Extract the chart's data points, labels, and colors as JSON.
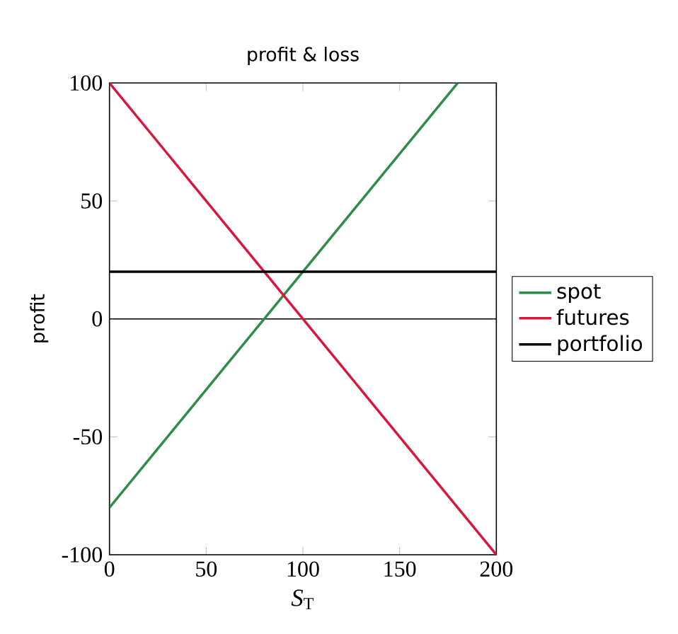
{
  "chart_data": {
    "type": "line",
    "title": "profit & loss",
    "xlabel": "*S*$_{T}$",
    "ylabel": "profit",
    "xlim": [
      0,
      200
    ],
    "ylim": [
      -100,
      100
    ],
    "xticks": [
      0,
      50,
      100,
      150,
      200
    ],
    "yticks": [
      -100,
      -50,
      0,
      50,
      100
    ],
    "series": [
      {
        "name": "spot",
        "color": "#2e8b4a",
        "x": [
          0,
          180
        ],
        "values": [
          -80,
          100
        ]
      },
      {
        "name": "futures",
        "color": "#dc143c",
        "x": [
          0,
          200
        ],
        "values": [
          100,
          -100
        ]
      },
      {
        "name": "portfolio",
        "color": "#000000",
        "x": [
          0,
          200
        ],
        "values": [
          20,
          20
        ]
      }
    ],
    "ref_lines": [
      {
        "axis": "y",
        "value": 0,
        "color": "#000000"
      }
    ],
    "legend": "right",
    "grid": false,
    "marker": "none",
    "line_style": "solid"
  }
}
